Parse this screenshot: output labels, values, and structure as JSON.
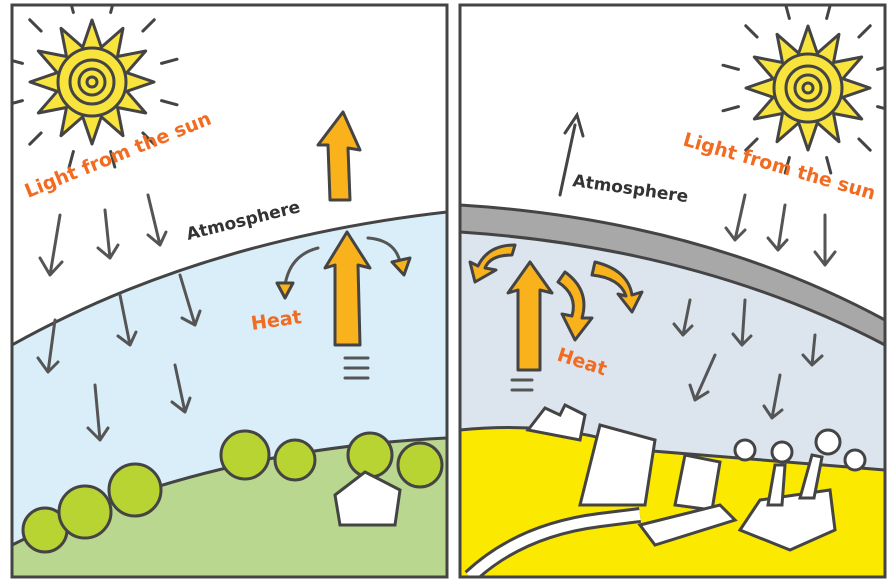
{
  "panels": [
    {
      "sun_label": "Light from the sun",
      "atmosphere_label": "Atmosphere",
      "heat_label": "Heat"
    },
    {
      "sun_label": "Light from the sun",
      "atmosphere_label": "Atmosphere",
      "heat_label": "Heat"
    }
  ]
}
